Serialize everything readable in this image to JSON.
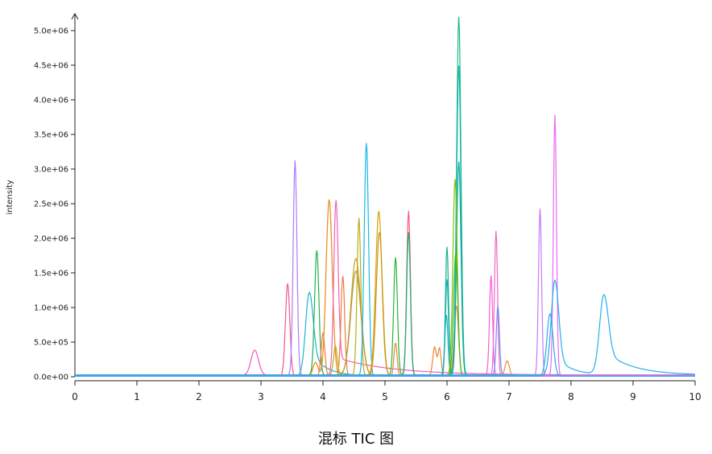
{
  "chart_data": {
    "type": "line",
    "title": "混标  TIC 图",
    "xlabel": "",
    "ylabel": "intensity",
    "xlim": [
      0,
      10
    ],
    "ylim": [
      0,
      5000000
    ],
    "x_ticks": [
      "0",
      "1",
      "2",
      "3",
      "4",
      "5",
      "6",
      "7",
      "8",
      "9",
      "10"
    ],
    "y_ticks": [
      "0.0e+00",
      "5.0e+05",
      "1.0e+06",
      "1.5e+06",
      "2.0e+06",
      "2.5e+06",
      "3.0e+06",
      "3.5e+06",
      "4.0e+06",
      "4.5e+06",
      "5.0e+06"
    ],
    "grid": false,
    "baseline": 40000,
    "series": [
      {
        "color": "#f055c8",
        "peaks": [
          {
            "rt": 2.9,
            "height": 360000,
            "sigma": 0.06
          }
        ]
      },
      {
        "color": "#f7577c",
        "peaks": [
          {
            "rt": 3.43,
            "height": 1340000,
            "sigma": 0.035
          }
        ]
      },
      {
        "color": "#a97cf8",
        "peaks": [
          {
            "rt": 3.55,
            "height": 3100000,
            "sigma": 0.03
          }
        ]
      },
      {
        "color": "#17b7cf",
        "peaks": [
          {
            "rt": 3.78,
            "height": 1210000,
            "sigma": 0.06,
            "tail": 0.25
          }
        ]
      },
      {
        "color": "#22b24c",
        "peaks": [
          {
            "rt": 3.9,
            "height": 1800000,
            "sigma": 0.035
          }
        ]
      },
      {
        "color": "#e68a10",
        "peaks": [
          {
            "rt": 4.1,
            "height": 2550000,
            "sigma": 0.05
          },
          {
            "rt": 3.88,
            "height": 200000,
            "sigma": 0.04
          }
        ]
      },
      {
        "color": "#f45fb0",
        "peaks": [
          {
            "rt": 4.21,
            "height": 2530000,
            "sigma": 0.035,
            "tail": 0.9,
            "tailFrac": 0.1
          }
        ]
      },
      {
        "color": "#f07840",
        "peaks": [
          {
            "rt": 4.32,
            "height": 1450000,
            "sigma": 0.03
          },
          {
            "rt": 4.0,
            "height": 620000,
            "sigma": 0.03
          }
        ]
      },
      {
        "color": "#b8ad16",
        "peaks": [
          {
            "rt": 4.58,
            "height": 2270000,
            "sigma": 0.03
          },
          {
            "rt": 4.2,
            "height": 420000,
            "sigma": 0.03
          }
        ]
      },
      {
        "color": "#c8a020",
        "peaks": [
          {
            "rt": 4.53,
            "height": 1700000,
            "sigma": 0.08
          }
        ]
      },
      {
        "color": "#b89a30",
        "peaks": [
          {
            "rt": 4.53,
            "height": 1500000,
            "sigma": 0.08
          }
        ]
      },
      {
        "color": "#1bb8e6",
        "peaks": [
          {
            "rt": 4.7,
            "height": 3370000,
            "sigma": 0.035
          }
        ]
      },
      {
        "color": "#d9a010",
        "peaks": [
          {
            "rt": 4.9,
            "height": 2370000,
            "sigma": 0.05
          }
        ]
      },
      {
        "color": "#c99514",
        "peaks": [
          {
            "rt": 4.91,
            "height": 2080000,
            "sigma": 0.05
          }
        ]
      },
      {
        "color": "#27b33a",
        "peaks": [
          {
            "rt": 5.17,
            "height": 1700000,
            "sigma": 0.03
          }
        ]
      },
      {
        "color": "#f0843c",
        "peaks": [
          {
            "rt": 5.17,
            "height": 480000,
            "sigma": 0.025
          },
          {
            "rt": 5.8,
            "height": 420000,
            "sigma": 0.03
          },
          {
            "rt": 5.88,
            "height": 400000,
            "sigma": 0.025
          },
          {
            "rt": 6.15,
            "height": 1020000,
            "sigma": 0.035
          },
          {
            "rt": 6.97,
            "height": 220000,
            "sigma": 0.035
          }
        ]
      },
      {
        "color": "#f9577f",
        "peaks": [
          {
            "rt": 5.38,
            "height": 2370000,
            "sigma": 0.03
          }
        ]
      },
      {
        "color": "#1fae74",
        "peaks": [
          {
            "rt": 5.38,
            "height": 2080000,
            "sigma": 0.03
          }
        ]
      },
      {
        "color": "#10b48c",
        "peaks": [
          {
            "rt": 6.0,
            "height": 1850000,
            "sigma": 0.025
          }
        ]
      },
      {
        "color": "#14b0b0",
        "peaks": [
          {
            "rt": 6.0,
            "height": 1400000,
            "sigma": 0.025
          }
        ]
      },
      {
        "color": "#18b4c0",
        "peaks": [
          {
            "rt": 5.99,
            "height": 870000,
            "sigma": 0.025
          }
        ]
      },
      {
        "color": "#1dba80",
        "peaks": [
          {
            "rt": 6.19,
            "height": 5200000,
            "sigma": 0.035
          }
        ]
      },
      {
        "color": "#15b6a8",
        "peaks": [
          {
            "rt": 6.19,
            "height": 4470000,
            "sigma": 0.035
          }
        ]
      },
      {
        "color": "#16aa9c",
        "peaks": [
          {
            "rt": 6.19,
            "height": 3100000,
            "sigma": 0.035
          }
        ]
      },
      {
        "color": "#7cc213",
        "peaks": [
          {
            "rt": 6.13,
            "height": 2830000,
            "sigma": 0.035
          }
        ]
      },
      {
        "color": "#4cb81a",
        "peaks": [
          {
            "rt": 6.14,
            "height": 1780000,
            "sigma": 0.035
          }
        ]
      },
      {
        "color": "#f35fd8",
        "peaks": [
          {
            "rt": 6.71,
            "height": 1440000,
            "sigma": 0.025
          }
        ]
      },
      {
        "color": "#f565c9",
        "peaks": [
          {
            "rt": 6.79,
            "height": 2100000,
            "sigma": 0.025
          }
        ]
      },
      {
        "color": "#6f8df8",
        "peaks": [
          {
            "rt": 6.82,
            "height": 1000000,
            "sigma": 0.025
          }
        ]
      },
      {
        "color": "#c77af5",
        "peaks": [
          {
            "rt": 7.5,
            "height": 2420000,
            "sigma": 0.025
          }
        ]
      },
      {
        "color": "#e76bf2",
        "peaks": [
          {
            "rt": 7.74,
            "height": 3760000,
            "sigma": 0.025
          }
        ]
      },
      {
        "color": "#2fa7f0",
        "peaks": [
          {
            "rt": 7.66,
            "height": 900000,
            "sigma": 0.05
          }
        ]
      },
      {
        "color": "#23b0ea",
        "peaks": [
          {
            "rt": 7.74,
            "height": 1370000,
            "sigma": 0.06,
            "tail": 0.25,
            "tailFrac": 0.2
          },
          {
            "rt": 8.53,
            "height": 1150000,
            "sigma": 0.07,
            "tail": 0.45,
            "tailFrac": 0.3
          }
        ]
      }
    ]
  }
}
